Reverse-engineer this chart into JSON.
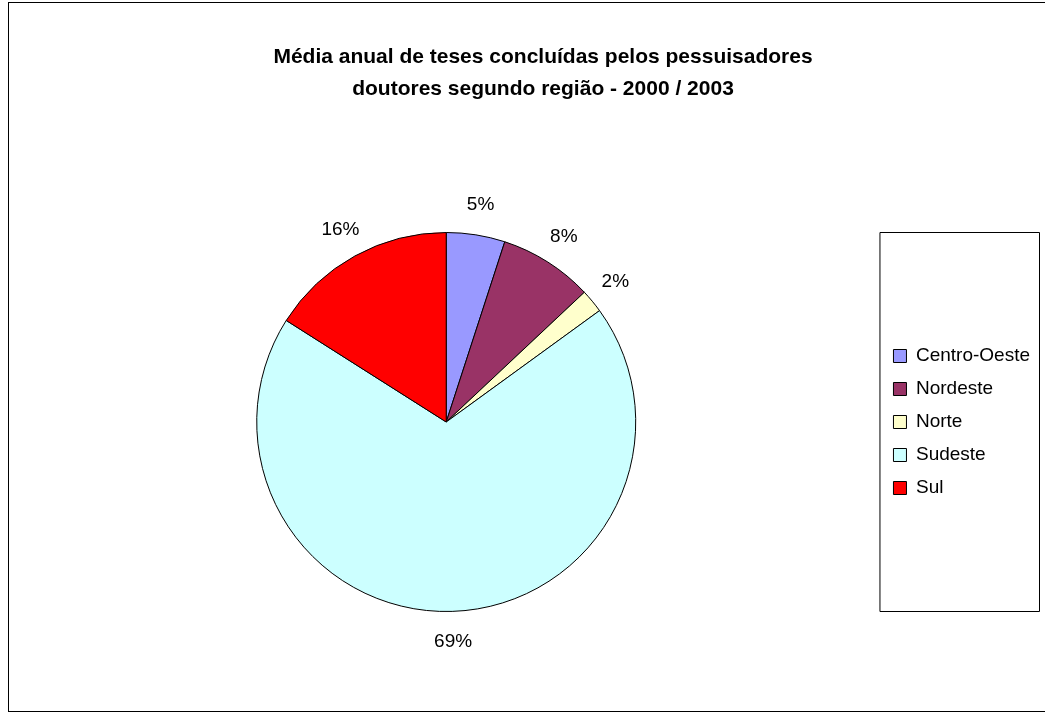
{
  "chart_data": {
    "type": "pie",
    "title": "Média anual de teses concluídas pelos pessuisadores doutores segundo região - 2000 / 2003",
    "categories": [
      "Centro-Oeste",
      "Nordeste",
      "Norte",
      "Sudeste",
      "Sul"
    ],
    "values": [
      5,
      8,
      2,
      69,
      16
    ],
    "value_labels": [
      "5%",
      "8%",
      "2%",
      "69%",
      "16%"
    ],
    "colors": [
      "#9999ff",
      "#993366",
      "#ffffcc",
      "#ccffff",
      "#ff0000"
    ],
    "legend": "right"
  }
}
